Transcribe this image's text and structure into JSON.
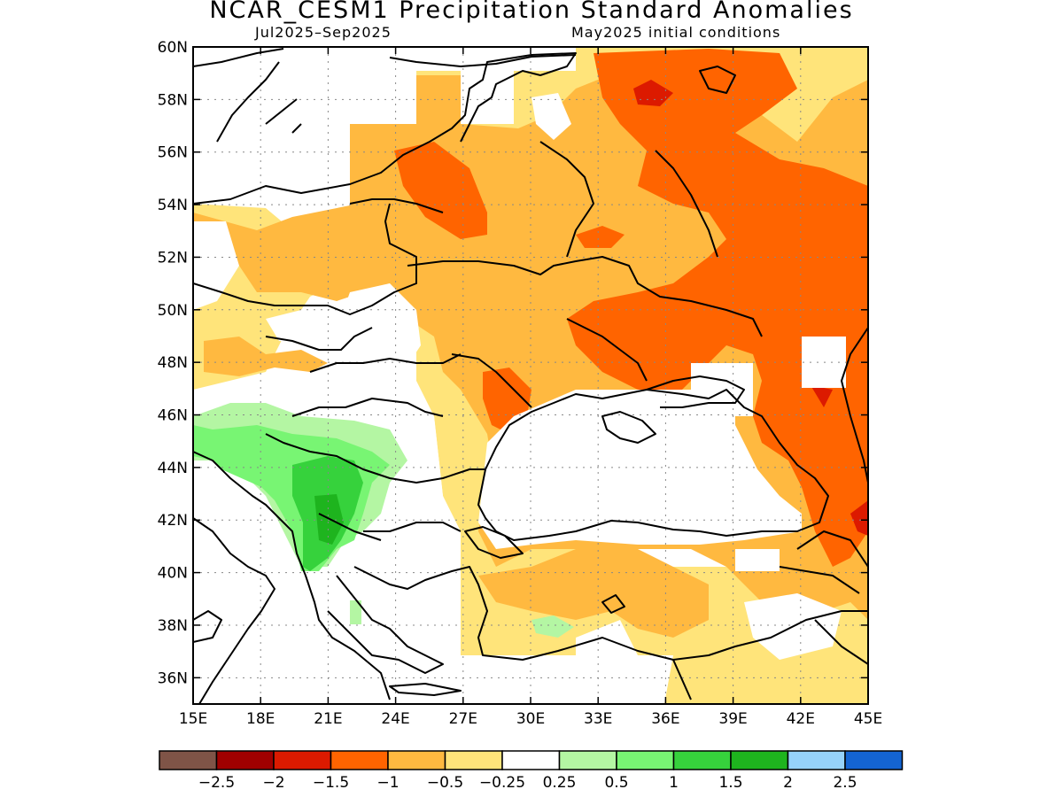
{
  "title": "NCAR_CESM1 Precipitation Standard Anomalies",
  "period": "Jul2025–Sep2025",
  "init": "May2025 initial conditions",
  "map": {
    "lon_range": [
      15,
      45
    ],
    "lat_range": [
      35,
      60
    ],
    "lon_ticks": [
      "15E",
      "18E",
      "21E",
      "24E",
      "27E",
      "30E",
      "33E",
      "36E",
      "39E",
      "42E",
      "45E"
    ],
    "lat_ticks": [
      "60N",
      "58N",
      "56N",
      "54N",
      "52N",
      "50N",
      "48N",
      "46N",
      "44N",
      "42N",
      "40N",
      "38N",
      "36N"
    ],
    "grid": true
  },
  "colorbar": {
    "colors": [
      "#7f5447",
      "#a00000",
      "#dc1a00",
      "#ff6400",
      "#ffb940",
      "#ffe47a",
      "#ffffff",
      "#b4f6a3",
      "#78f573",
      "#36d23c",
      "#1eb41e",
      "#96d2fa",
      "#1464d2"
    ],
    "labels": [
      "−2.5",
      "−2",
      "−1.5",
      "−1",
      "−0.5",
      "−0.25",
      "0.25",
      "0.5",
      "1",
      "1.5",
      "2",
      "2.5"
    ]
  }
}
